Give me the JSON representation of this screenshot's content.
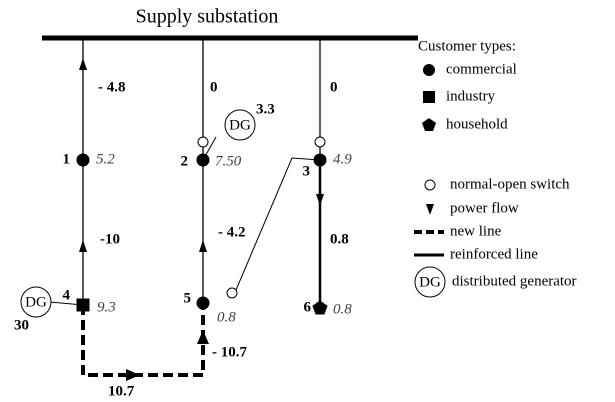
{
  "title": "Supply substation",
  "nodes": [
    {
      "id": "1",
      "load": "5.2"
    },
    {
      "id": "2",
      "load": "7.50"
    },
    {
      "id": "3",
      "load": "4.9"
    },
    {
      "id": "4",
      "load": "9.3"
    },
    {
      "id": "5",
      "load": "0.8"
    },
    {
      "id": "6",
      "load": "0.8"
    }
  ],
  "flows": [
    "- 4.8",
    "-10",
    "0",
    "- 4.2",
    "0",
    "0.8",
    "- 10.7",
    "10.7"
  ],
  "dg": [
    {
      "label": "DG",
      "power": "3.3"
    },
    {
      "label": "DG",
      "power": "30"
    }
  ],
  "legend": {
    "heading": "Customer types:",
    "items": [
      "commercial",
      "industry",
      "household",
      "normal-open switch",
      "power flow",
      "new line",
      "reinforced line",
      "distributed generator"
    ],
    "dg_symbol": "DG"
  }
}
